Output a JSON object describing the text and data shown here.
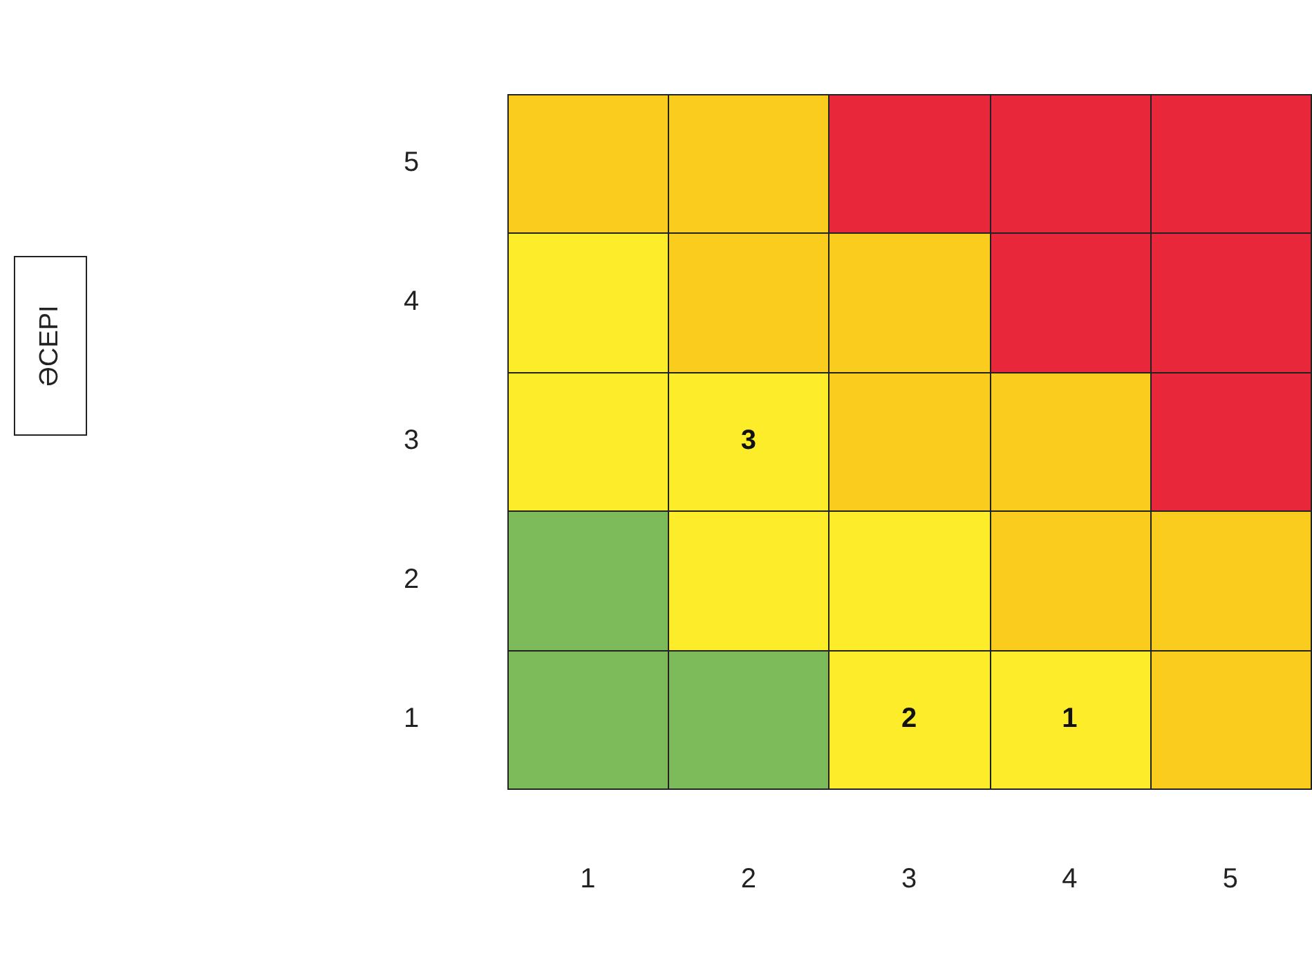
{
  "chart_data": {
    "type": "heatmap",
    "annotations": [
      "ӘСЕРІ"
    ],
    "categories": [
      "1",
      "2",
      "3",
      "4",
      "5"
    ],
    "y_categories": [
      "5",
      "4",
      "3",
      "2",
      "1"
    ],
    "cells": [
      [
        null,
        null,
        null,
        null,
        null
      ],
      [
        null,
        null,
        null,
        null,
        null
      ],
      [
        null,
        3,
        null,
        null,
        null
      ],
      [
        null,
        null,
        null,
        null,
        null
      ],
      [
        null,
        null,
        2,
        1,
        null
      ]
    ],
    "colors": [
      [
        "#f9cc1e",
        "#f9cc1e",
        "#e8283a",
        "#e8283a",
        "#e8283a"
      ],
      [
        "#fdec2a",
        "#f9cc1e",
        "#f9cc1e",
        "#e8283a",
        "#e8283a"
      ],
      [
        "#fdec2a",
        "#fdec2a",
        "#f9cc1e",
        "#f9cc1e",
        "#e8283a"
      ],
      [
        "#7dbb5a",
        "#fdec2a",
        "#fdec2a",
        "#f9cc1e",
        "#f9cc1e"
      ],
      [
        "#7dbb5a",
        "#7dbb5a",
        "#fdec2a",
        "#fdec2a",
        "#f9cc1e"
      ]
    ],
    "data_labels": true
  }
}
